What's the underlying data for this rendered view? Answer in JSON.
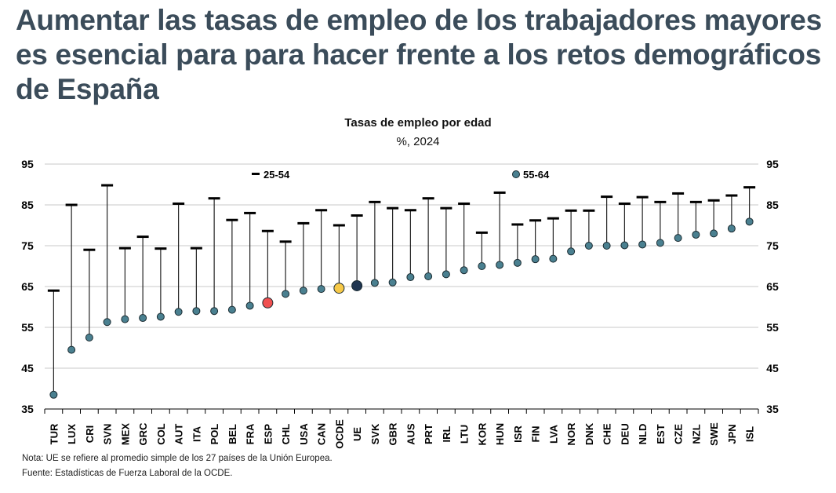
{
  "title": "Aumentar las tasas de empleo de los trabajadores mayores es esencial para para hacer frente a los retos demográficos de España",
  "chart_data": {
    "type": "dot-range",
    "title": "Tasas de empleo por edad",
    "subtitle": "%, 2024",
    "ylim": [
      35,
      95
    ],
    "yticks": [
      35,
      45,
      55,
      65,
      75,
      85,
      95
    ],
    "grid": true,
    "legend_placement": "top",
    "categories": [
      "TUR",
      "LUX",
      "CRI",
      "SVN",
      "MEX",
      "GRC",
      "COL",
      "AUT",
      "ITA",
      "POL",
      "BEL",
      "FRA",
      "ESP",
      "CHL",
      "USA",
      "CAN",
      "OCDE",
      "UE",
      "SVK",
      "GBR",
      "AUS",
      "PRT",
      "IRL",
      "LTU",
      "KOR",
      "HUN",
      "ISR",
      "FIN",
      "LVA",
      "NOR",
      "DNK",
      "CHE",
      "DEU",
      "NLD",
      "EST",
      "CZE",
      "NZL",
      "SWE",
      "JPN",
      "ISL"
    ],
    "series": [
      {
        "name": "25-54",
        "marker": "dash",
        "values": [
          64.0,
          85.0,
          74.0,
          89.8,
          74.4,
          77.2,
          74.3,
          85.3,
          74.4,
          86.6,
          81.3,
          83.0,
          78.6,
          76.0,
          80.5,
          83.7,
          80.0,
          82.4,
          85.7,
          84.2,
          83.7,
          86.6,
          84.2,
          85.3,
          78.2,
          88.0,
          80.2,
          81.2,
          81.7,
          83.6,
          83.6,
          87.0,
          85.3,
          86.9,
          85.7,
          87.8,
          85.7,
          86.1,
          87.3,
          89.3
        ]
      },
      {
        "name": "55-64",
        "marker": "circle",
        "values": [
          38.5,
          49.5,
          52.5,
          56.3,
          57.0,
          57.3,
          57.6,
          58.8,
          59.0,
          59.0,
          59.3,
          60.3,
          61.0,
          63.2,
          64.0,
          64.4,
          64.6,
          65.2,
          65.9,
          66.0,
          67.3,
          67.5,
          68.0,
          69.0,
          70.0,
          70.3,
          70.8,
          71.7,
          71.8,
          73.6,
          75.0,
          75.0,
          75.1,
          75.3,
          75.7,
          76.9,
          77.7,
          78.0,
          79.2,
          80.9
        ]
      }
    ],
    "highlights": {
      "ESP": "#f05050",
      "OCDE": "#f7c948",
      "UE": "#1f3550"
    },
    "colors": {
      "dot": "#4a8090",
      "dash": "#000000",
      "grid": "#c8c8c8"
    }
  },
  "notes": {
    "nota": "Nota: UE se refiere al promedio simple de los 27 países de la Unión Europea.",
    "fuente": "Fuente: Estadísticas de Fuerza Laboral de la OCDE."
  }
}
